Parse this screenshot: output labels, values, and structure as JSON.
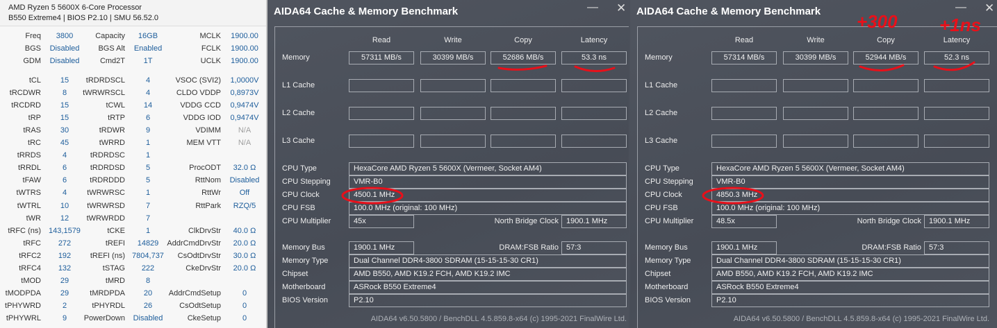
{
  "zentimings": {
    "header": [
      "AMD Ryzen 5 5600X 6-Core Processor",
      "B550 Extreme4 | BIOS P2.10 | SMU 56.52.0"
    ],
    "top": [
      [
        [
          "Freq",
          "3800"
        ],
        [
          "Capacity",
          "16GB"
        ],
        [
          "MCLK",
          "1900.00"
        ]
      ],
      [
        [
          "BGS",
          "Disabled"
        ],
        [
          "BGS Alt",
          "Enabled"
        ],
        [
          "FCLK",
          "1900.00"
        ]
      ],
      [
        [
          "GDM",
          "Disabled"
        ],
        [
          "Cmd2T",
          "1T"
        ],
        [
          "UCLK",
          "1900.00"
        ]
      ]
    ],
    "rows": [
      [
        [
          "tCL",
          "15"
        ],
        [
          "tRDRDSCL",
          "4"
        ],
        [
          "VSOC (SVI2)",
          "1,0000V"
        ]
      ],
      [
        [
          "tRCDWR",
          "8"
        ],
        [
          "tWRWRSCL",
          "4"
        ],
        [
          "CLDO VDDP",
          "0,8973V"
        ]
      ],
      [
        [
          "tRCDRD",
          "15"
        ],
        [
          "tCWL",
          "14"
        ],
        [
          "VDDG CCD",
          "0,9474V"
        ]
      ],
      [
        [
          "tRP",
          "15"
        ],
        [
          "tRTP",
          "6"
        ],
        [
          "VDDG IOD",
          "0,9474V"
        ]
      ],
      [
        [
          "tRAS",
          "30"
        ],
        [
          "tRDWR",
          "9"
        ],
        [
          "VDIMM",
          "N/A"
        ]
      ],
      [
        [
          "tRC",
          "45"
        ],
        [
          "tWRRD",
          "1"
        ],
        [
          "MEM VTT",
          "N/A"
        ]
      ],
      [
        [
          "tRRDS",
          "4"
        ],
        [
          "tRDRDSC",
          "1"
        ],
        [
          "",
          ""
        ]
      ],
      [
        [
          "tRRDL",
          "6"
        ],
        [
          "tRDRDSD",
          "5"
        ],
        [
          "ProcODT",
          "32.0 Ω"
        ]
      ],
      [
        [
          "tFAW",
          "6"
        ],
        [
          "tRDRDDD",
          "5"
        ],
        [
          "RttNom",
          "Disabled"
        ]
      ],
      [
        [
          "tWTRS",
          "4"
        ],
        [
          "tWRWRSC",
          "1"
        ],
        [
          "RttWr",
          "Off"
        ]
      ],
      [
        [
          "tWTRL",
          "10"
        ],
        [
          "tWRWRSD",
          "7"
        ],
        [
          "RttPark",
          "RZQ/5"
        ]
      ],
      [
        [
          "tWR",
          "12"
        ],
        [
          "tWRWRDD",
          "7"
        ],
        [
          "",
          ""
        ]
      ],
      [
        [
          "tRFC (ns)",
          "143,1579"
        ],
        [
          "tCKE",
          "1"
        ],
        [
          "ClkDrvStr",
          "40.0 Ω"
        ]
      ],
      [
        [
          "tRFC",
          "272"
        ],
        [
          "tREFI",
          "14829"
        ],
        [
          "AddrCmdDrvStr",
          "20.0 Ω"
        ]
      ],
      [
        [
          "tRFC2",
          "192"
        ],
        [
          "tREFI (ns)",
          "7804,737"
        ],
        [
          "CsOdtDrvStr",
          "30.0 Ω"
        ]
      ],
      [
        [
          "tRFC4",
          "132"
        ],
        [
          "tSTAG",
          "222"
        ],
        [
          "CkeDrvStr",
          "20.0 Ω"
        ]
      ],
      [
        [
          "tMOD",
          "29"
        ],
        [
          "tMRD",
          "8"
        ],
        [
          "",
          ""
        ]
      ],
      [
        [
          "tMODPDA",
          "29"
        ],
        [
          "tMRDPDA",
          "20"
        ],
        [
          "AddrCmdSetup",
          "0"
        ]
      ],
      [
        [
          "tPHYWRD",
          "2"
        ],
        [
          "tPHYRDL",
          "26"
        ],
        [
          "CsOdtSetup",
          "0"
        ]
      ],
      [
        [
          "tPHYWRL",
          "9"
        ],
        [
          "PowerDown",
          "Disabled"
        ],
        [
          "CkeSetup",
          "0"
        ]
      ]
    ],
    "dimmed": [
      "VDIMM",
      "MEM VTT"
    ]
  },
  "windows": [
    {
      "title": "AIDA64 Cache & Memory Benchmark",
      "minimize": "—",
      "close": "✕",
      "columns": [
        "Read",
        "Write",
        "Copy",
        "Latency"
      ],
      "cache_rows": [
        {
          "label": "Memory",
          "values": [
            "57311 MB/s",
            "30399 MB/s",
            "52686 MB/s",
            "53.3 ns"
          ]
        },
        {
          "label": "L1 Cache",
          "values": [
            "",
            "",
            "",
            ""
          ]
        },
        {
          "label": "L2 Cache",
          "values": [
            "",
            "",
            "",
            ""
          ]
        },
        {
          "label": "L3 Cache",
          "values": [
            "",
            "",
            "",
            ""
          ]
        }
      ],
      "cpu": {
        "CPU Type": "HexaCore AMD Ryzen 5 5600X  (Vermeer, Socket AM4)",
        "CPU Stepping": "VMR-B0",
        "CPU Clock": "4500.1 MHz",
        "CPU FSB": "100.0 MHz  (original: 100 MHz)",
        "CPU Multiplier": "45x",
        "North Bridge Clock": "1900.1 MHz"
      },
      "mem": {
        "Memory Bus": "1900.1 MHz",
        "DRAM:FSB Ratio": "57:3",
        "Memory Type": "Dual Channel DDR4-3800 SDRAM  (15-15-15-30 CR1)",
        "Chipset": "AMD B550, AMD K19.2 FCH, AMD K19.2 IMC",
        "Motherboard": "ASRock B550 Extreme4",
        "BIOS Version": "P2.10"
      },
      "footer": "AIDA64 v6.50.5800 / BenchDLL 4.5.859.8-x64  (c) 1995-2021 FinalWire Ltd."
    },
    {
      "title": "AIDA64 Cache & Memory Benchmark",
      "minimize": "—",
      "close": "✕",
      "columns": [
        "Read",
        "Write",
        "Copy",
        "Latency"
      ],
      "cache_rows": [
        {
          "label": "Memory",
          "values": [
            "57314 MB/s",
            "30399 MB/s",
            "52944 MB/s",
            "52.3 ns"
          ]
        },
        {
          "label": "L1 Cache",
          "values": [
            "",
            "",
            "",
            ""
          ]
        },
        {
          "label": "L2 Cache",
          "values": [
            "",
            "",
            "",
            ""
          ]
        },
        {
          "label": "L3 Cache",
          "values": [
            "",
            "",
            "",
            ""
          ]
        }
      ],
      "cpu": {
        "CPU Type": "HexaCore AMD Ryzen 5 5600X  (Vermeer, Socket AM4)",
        "CPU Stepping": "VMR-B0",
        "CPU Clock": "4850.3 MHz",
        "CPU FSB": "100.0 MHz  (original: 100 MHz)",
        "CPU Multiplier": "48.5x",
        "North Bridge Clock": "1900.1 MHz"
      },
      "mem": {
        "Memory Bus": "1900.1 MHz",
        "DRAM:FSB Ratio": "57:3",
        "Memory Type": "Dual Channel DDR4-3800 SDRAM  (15-15-15-30 CR1)",
        "Chipset": "AMD B550, AMD K19.2 FCH, AMD K19.2 IMC",
        "Motherboard": "ASRock B550 Extreme4",
        "BIOS Version": "P2.10"
      },
      "footer": "AIDA64 v6.50.5800 / BenchDLL 4.5.859.8-x64  (c) 1995-2021 FinalWire Ltd."
    }
  ],
  "annotations": {
    "copy_note": "+300",
    "latency_note": "+1ns",
    "color": "#e8101a"
  }
}
